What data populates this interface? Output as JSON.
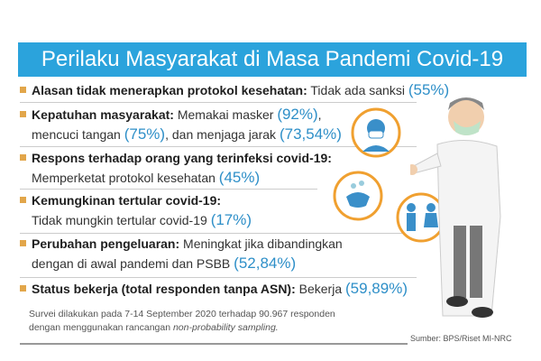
{
  "title": "Perilaku Masyarakat di Masa Pandemi Covid-19",
  "items": [
    {
      "label": "Alasan tidak menerapkan protokol kesehatan:",
      "text": " Tidak ada sanksi ",
      "pct": "(55%)"
    },
    {
      "label": "Kepatuhan masyarakat:",
      "text": " Memakai masker ",
      "pct": "(92%)",
      "text2": ",",
      "line2a": "mencuci tangan ",
      "pct2": "(75%)",
      "line2b": ", dan menjaga jarak ",
      "pct3": "(73,54%)"
    },
    {
      "label": "Respons terhadap orang yang terinfeksi covid-19:",
      "line2": "Memperketat protokol kesehatan ",
      "pct": "(45%)"
    },
    {
      "label": "Kemungkinan tertular covid-19:",
      "line2": "Tidak mungkin tertular covid-19 ",
      "pct": "(17%)"
    },
    {
      "label": "Perubahan pengeluaran:",
      "text": " Meningkat jika dibandingkan",
      "line2": "dengan di awal pandemi dan PSBB ",
      "pct": "(52,84%)"
    },
    {
      "label": "Status bekerja (total responden tanpa ASN):",
      "text": " Bekerja ",
      "pct": "(59,89%)"
    }
  ],
  "note": {
    "line1": "Survei dilakukan pada 7-14 September 2020 terhadap 90.967 responden",
    "line2": "dengan menggunakan rancangan ",
    "line2_italic": "non-probability sampling."
  },
  "source": "Sumber: BPS/Riset MI-NRC",
  "colors": {
    "title_bg": "#2ba3dc",
    "percent": "#2e8fc8",
    "bullet": "#e2a64a",
    "icon_ring": "#f0a030"
  }
}
